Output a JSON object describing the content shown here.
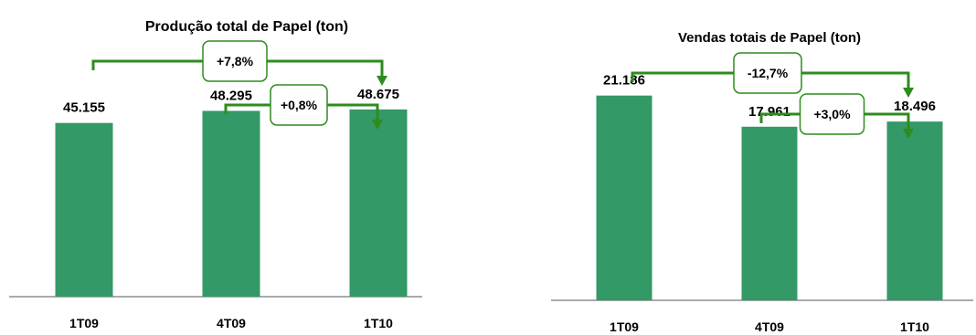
{
  "colors": {
    "bar": "#339966",
    "bracket": "#2e8b1e"
  },
  "chart_data": [
    {
      "type": "bar",
      "title": "Produção total de Papel (ton)",
      "categories": [
        "1T09",
        "4T09",
        "1T10"
      ],
      "values": [
        45155,
        48295,
        48675
      ],
      "value_labels": [
        "45.155",
        "48.295",
        "48.675"
      ],
      "ylim": [
        0,
        70000
      ],
      "grid": false,
      "annotations": [
        {
          "from": "1T09",
          "to": "1T10",
          "label": "+7,8%"
        },
        {
          "from": "4T09",
          "to": "1T10",
          "label": "+0,8%"
        }
      ]
    },
    {
      "type": "bar",
      "title": "Vendas totais de Papel (ton)",
      "categories": [
        "1T09",
        "4T09",
        "1T10"
      ],
      "values": [
        21186,
        17961,
        18496
      ],
      "value_labels": [
        "21.186",
        "17.961",
        "18.496"
      ],
      "ylim": [
        0,
        30600
      ],
      "grid": false,
      "annotations": [
        {
          "from": "1T09",
          "to": "1T10",
          "label": "-12,7%"
        },
        {
          "from": "4T09",
          "to": "1T10",
          "label": "+3,0%"
        }
      ]
    }
  ]
}
